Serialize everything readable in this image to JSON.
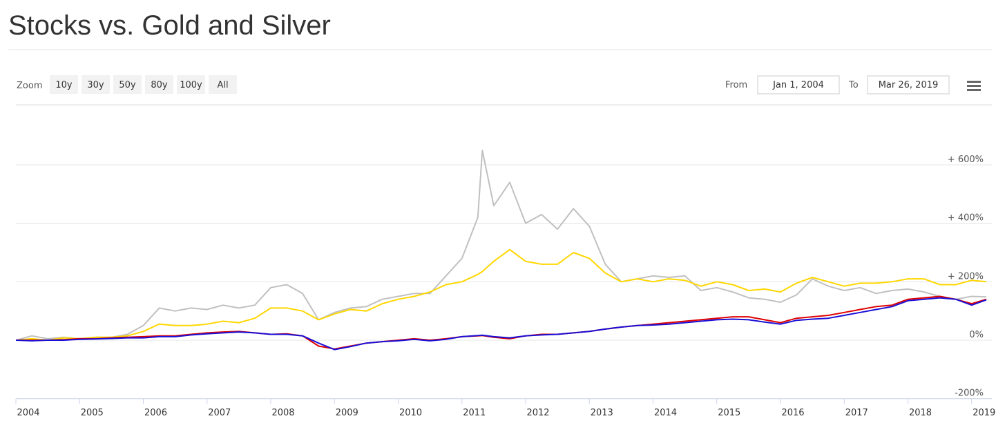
{
  "chart_data": {
    "type": "line",
    "title": "Stocks vs. Gold and Silver",
    "x": [
      2004,
      2004.25,
      2004.5,
      2004.75,
      2005,
      2005.25,
      2005.5,
      2005.75,
      2006,
      2006.25,
      2006.5,
      2006.75,
      2007,
      2007.25,
      2007.5,
      2007.75,
      2008,
      2008.25,
      2008.5,
      2008.75,
      2009,
      2009.25,
      2009.5,
      2009.75,
      2010,
      2010.25,
      2010.5,
      2010.75,
      2011,
      2011.25,
      2011.32,
      2011.5,
      2011.75,
      2012,
      2012.25,
      2012.5,
      2012.75,
      2013,
      2013.25,
      2013.5,
      2013.75,
      2014,
      2014.25,
      2014.5,
      2014.75,
      2015,
      2015.25,
      2015.5,
      2015.75,
      2016,
      2016.25,
      2016.5,
      2016.75,
      2017,
      2017.25,
      2017.5,
      2017.75,
      2018,
      2018.25,
      2018.5,
      2018.75,
      2019,
      2019.23
    ],
    "series": [
      {
        "color": "#c0c0c0",
        "values": [
          0,
          15,
          5,
          10,
          5,
          10,
          10,
          20,
          50,
          110,
          100,
          110,
          105,
          120,
          110,
          120,
          180,
          190,
          160,
          70,
          95,
          110,
          115,
          140,
          150,
          160,
          160,
          220,
          280,
          420,
          650,
          460,
          540,
          400,
          430,
          380,
          450,
          390,
          260,
          200,
          210,
          220,
          215,
          220,
          170,
          180,
          165,
          145,
          140,
          130,
          155,
          210,
          185,
          170,
          180,
          160,
          170,
          175,
          165,
          150,
          140,
          150,
          148
        ]
      },
      {
        "color": "#ffd700",
        "values": [
          0,
          5,
          0,
          8,
          5,
          10,
          10,
          15,
          30,
          55,
          50,
          50,
          55,
          65,
          60,
          75,
          110,
          110,
          100,
          70,
          90,
          105,
          100,
          125,
          140,
          150,
          165,
          190,
          200,
          225,
          235,
          270,
          310,
          270,
          260,
          260,
          300,
          280,
          230,
          200,
          210,
          200,
          210,
          205,
          185,
          200,
          190,
          170,
          175,
          165,
          195,
          215,
          200,
          185,
          195,
          195,
          200,
          210,
          210,
          190,
          190,
          205,
          200
        ]
      },
      {
        "color": "#e00000",
        "values": [
          0,
          0,
          0,
          2,
          5,
          5,
          8,
          10,
          12,
          15,
          15,
          20,
          25,
          28,
          30,
          25,
          20,
          22,
          15,
          -20,
          -30,
          -20,
          -10,
          -5,
          0,
          5,
          0,
          5,
          12,
          15,
          16,
          10,
          5,
          15,
          20,
          20,
          25,
          30,
          38,
          45,
          50,
          55,
          60,
          65,
          70,
          75,
          80,
          80,
          70,
          60,
          75,
          80,
          85,
          95,
          105,
          115,
          120,
          140,
          145,
          150,
          140,
          125,
          140
        ]
      },
      {
        "color": "#1a0fd6",
        "values": [
          0,
          -2,
          0,
          0,
          3,
          4,
          6,
          8,
          8,
          12,
          12,
          18,
          22,
          25,
          28,
          25,
          20,
          20,
          15,
          -10,
          -32,
          -22,
          -10,
          -5,
          -2,
          3,
          -2,
          3,
          12,
          16,
          17,
          12,
          8,
          15,
          18,
          20,
          25,
          30,
          38,
          45,
          50,
          52,
          55,
          60,
          65,
          70,
          72,
          70,
          62,
          55,
          68,
          72,
          75,
          85,
          95,
          105,
          115,
          135,
          140,
          145,
          140,
          120,
          138
        ]
      }
    ],
    "xlim": [
      2004,
      2019.23
    ],
    "xticks": [
      2004,
      2005,
      2006,
      2007,
      2008,
      2009,
      2010,
      2011,
      2012,
      2013,
      2014,
      2015,
      2016,
      2017,
      2018,
      2019
    ],
    "ylim": [
      -200,
      780
    ],
    "yticks": [
      {
        "value": -200,
        "label": "-200%"
      },
      {
        "value": 0,
        "label": "0%"
      },
      {
        "value": 200,
        "label": "+ 200%"
      },
      {
        "value": 400,
        "label": "+ 400%"
      },
      {
        "value": 600,
        "label": "+ 600%"
      }
    ],
    "grid": true
  },
  "range_selector": {
    "zoom_label": "Zoom",
    "buttons": [
      "10y",
      "30y",
      "50y",
      "80y",
      "100y",
      "All"
    ],
    "from_label": "From",
    "from": "Jan 1, 2004",
    "to_label": "To",
    "to": "Mar 26, 2019"
  }
}
